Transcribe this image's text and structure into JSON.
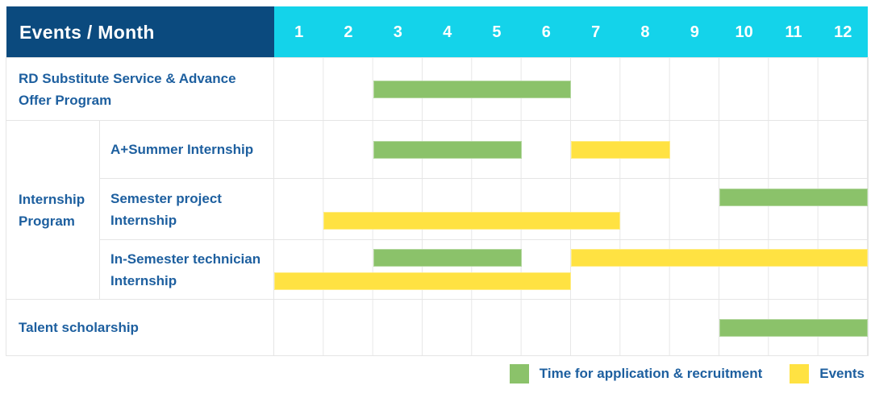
{
  "header": {
    "corner_label": "Events / Month"
  },
  "colors": {
    "header_navy": "#0b4a7e",
    "header_cyan": "#14d3ea",
    "label_text": "#1d5f9f",
    "grid_line": "#e7e7e7",
    "row_border": "#e5e5e5"
  },
  "legend_labels": {
    "application": "Time for application & recruitment",
    "events": "Events"
  },
  "chart_data": {
    "type": "bar",
    "subtype": "gantt",
    "title": "Events / Month",
    "x_axis_label": "Month",
    "x_ticks": [
      "1",
      "2",
      "3",
      "4",
      "5",
      "6",
      "7",
      "8",
      "9",
      "10",
      "11",
      "12"
    ],
    "x_range": [
      1,
      12
    ],
    "grid": true,
    "legend_position": "bottom-right",
    "series_colors": {
      "application": "#8bc26a",
      "events": "#ffe242"
    },
    "legend": [
      {
        "series": "application",
        "name": "Time for application & recruitment"
      },
      {
        "series": "events",
        "name": "Events"
      }
    ],
    "rows": [
      {
        "category": "RD Substitute Service & Advance Offer Program",
        "group": null,
        "spans": [
          {
            "series": "application",
            "start_month": 3,
            "end_month": 6,
            "lane": 0
          }
        ]
      },
      {
        "category": "A+Summer Internship",
        "group": "Internship Program",
        "spans": [
          {
            "series": "application",
            "start_month": 3,
            "end_month": 5,
            "lane": 0
          },
          {
            "series": "events",
            "start_month": 7,
            "end_month": 8,
            "lane": 0
          }
        ]
      },
      {
        "category": "Semester project Internship",
        "group": "Internship Program",
        "spans": [
          {
            "series": "application",
            "start_month": 10,
            "end_month": 12,
            "lane": 0
          },
          {
            "series": "events",
            "start_month": 2,
            "end_month": 7,
            "lane": 1
          }
        ]
      },
      {
        "category": "In-Semester technician Internship",
        "group": "Internship Program",
        "spans": [
          {
            "series": "application",
            "start_month": 3,
            "end_month": 5,
            "lane": 0
          },
          {
            "series": "events",
            "start_month": 7,
            "end_month": 12,
            "lane": 0
          },
          {
            "series": "events",
            "start_month": 1,
            "end_month": 6,
            "lane": 1
          }
        ]
      },
      {
        "category": "Talent scholarship",
        "group": null,
        "spans": [
          {
            "series": "application",
            "start_month": 10,
            "end_month": 12,
            "lane": 0
          }
        ]
      }
    ]
  }
}
